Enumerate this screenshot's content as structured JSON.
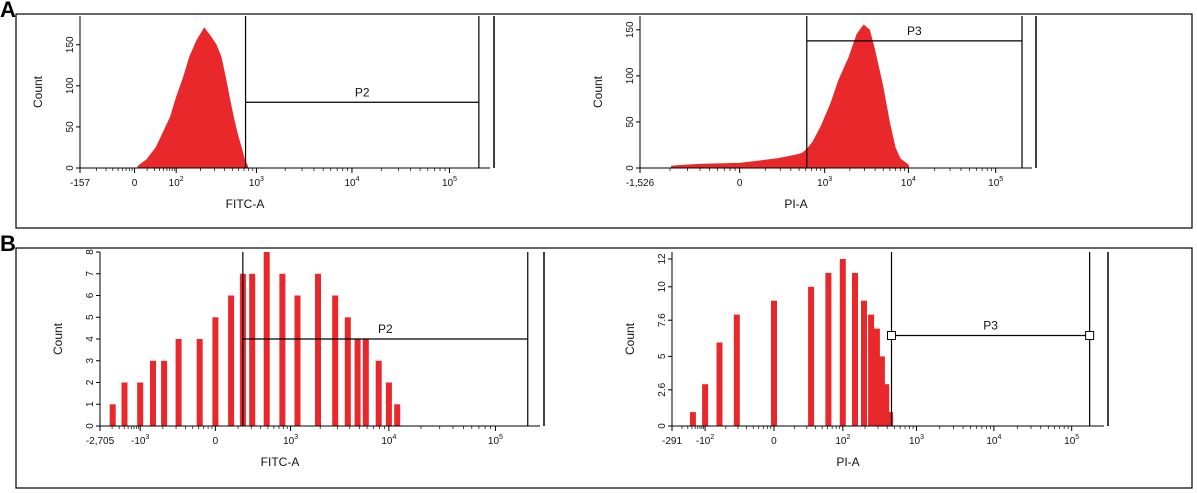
{
  "panels": [
    {
      "letter": "A"
    },
    {
      "letter": "B"
    }
  ],
  "chart_data": [
    {
      "panel": "A",
      "type": "area",
      "ylabel": "Count",
      "xlabel": "FITC-A",
      "scale": "biexponential",
      "x_tick_labels": [
        "-157",
        "0",
        "10^2",
        "10^3",
        "10^4",
        "10^5"
      ],
      "y_tick_labels": [
        "0",
        "50",
        "100",
        "150"
      ],
      "ylim": [
        0,
        185
      ],
      "gate": {
        "label": "P2",
        "x_start": 760,
        "x_end": 200000,
        "level": 80
      },
      "series": [
        {
          "x": [
            5,
            10,
            20,
            30,
            40,
            60,
            80,
            100,
            130,
            160,
            200,
            250,
            300,
            350,
            400,
            450,
            500,
            560,
            620,
            680,
            740,
            800
          ],
          "y": [
            2,
            5,
            10,
            18,
            25,
            45,
            62,
            85,
            110,
            135,
            155,
            170,
            160,
            150,
            135,
            110,
            85,
            60,
            40,
            25,
            10,
            2
          ]
        }
      ],
      "color": "#e8282a"
    },
    {
      "panel": "A",
      "type": "area",
      "ylabel": "Count",
      "xlabel": "PI-A",
      "scale": "biexponential",
      "x_tick_labels": [
        "-1,526",
        "0",
        "10^3",
        "10^4",
        "10^5"
      ],
      "y_tick_labels": [
        "0",
        "50",
        "100",
        "150"
      ],
      "ylim": [
        0,
        165
      ],
      "gate": {
        "label": "P3",
        "x_start": 580,
        "x_end": 200000,
        "level": 138
      },
      "series": [
        {
          "x": [
            -600,
            -400,
            -200,
            0,
            100,
            200,
            300,
            400,
            500,
            580,
            700,
            900,
            1200,
            1500,
            2000,
            2500,
            3000,
            3500,
            4000,
            5000,
            6000,
            7000,
            8000,
            10000
          ],
          "y": [
            2,
            3,
            4,
            5,
            8,
            10,
            12,
            14,
            16,
            20,
            28,
            45,
            70,
            95,
            120,
            145,
            155,
            150,
            130,
            90,
            50,
            22,
            10,
            3
          ]
        }
      ],
      "color": "#e8282a"
    },
    {
      "panel": "B",
      "type": "bar",
      "ylabel": "Count",
      "xlabel": "FITC-A",
      "scale": "biexponential",
      "x_tick_labels": [
        "-2,705",
        "-10^3",
        "0",
        "10^3",
        "10^4",
        "10^5"
      ],
      "y_tick_labels": [
        "0",
        "1",
        "2",
        "3",
        "4",
        "5",
        "6",
        "7",
        "8"
      ],
      "ylim": [
        0,
        8
      ],
      "gate": {
        "label": "P2",
        "x_start": 200,
        "x_end": 200000,
        "level": 4
      },
      "series": [
        {
          "x": [
            -2000,
            -1500,
            -1000,
            -700,
            -500,
            -300,
            -100,
            0,
            100,
            200,
            300,
            500,
            800,
            1200,
            2000,
            3000,
            4000,
            5000,
            6000,
            8000,
            10000,
            12000
          ],
          "y": [
            1,
            2,
            2,
            3,
            3,
            4,
            4,
            5,
            6,
            7,
            7,
            8,
            7,
            6,
            7,
            6,
            5,
            4,
            4,
            3,
            2,
            1
          ]
        }
      ],
      "color": "#e8282a"
    },
    {
      "panel": "B",
      "type": "bar",
      "ylabel": "Count",
      "xlabel": "PI-A",
      "scale": "biexponential",
      "x_tick_labels": [
        "-291",
        "-10^2",
        "0",
        "10^2",
        "10^3",
        "10^4",
        "10^5"
      ],
      "y_tick_labels": [
        "0",
        "2.6",
        "5",
        "7.6",
        "10",
        "12"
      ],
      "ylim": [
        0,
        12.5
      ],
      "gate": {
        "label": "P3",
        "x_start": 470,
        "x_end": 170000,
        "level": 6.5
      },
      "series": [
        {
          "x": [
            -150,
            -100,
            -60,
            -30,
            0,
            30,
            60,
            100,
            150,
            200,
            250,
            300,
            350,
            400,
            450
          ],
          "y": [
            1,
            3,
            6,
            8,
            9,
            10,
            11,
            12,
            11,
            9,
            8,
            7,
            5,
            3,
            1
          ]
        }
      ],
      "color": "#e8282a"
    }
  ]
}
